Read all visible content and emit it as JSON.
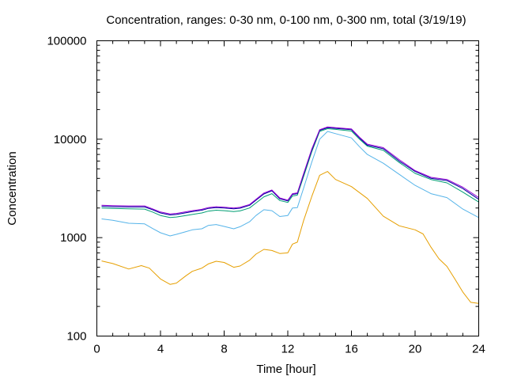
{
  "chart_data": {
    "type": "line",
    "title": "Concentration, ranges: 0-30 nm, 0-100 nm, 0-300 nm, total (3/19/19)",
    "xlabel": "Time [hour]",
    "ylabel": "Concentration",
    "xlim": [
      0,
      24
    ],
    "ylim": [
      100,
      100000
    ],
    "yscale": "log",
    "x_ticks": [
      0,
      4,
      8,
      12,
      16,
      20,
      24
    ],
    "x_tick_labels": [
      "0",
      "4",
      "8",
      "12",
      "16",
      "20",
      "24"
    ],
    "y_ticks": [
      100,
      1000,
      10000,
      100000
    ],
    "y_tick_labels": [
      "100",
      "1000",
      "10000",
      "100000"
    ],
    "grid": false,
    "legend": "none",
    "series": [
      {
        "color": "#e69f00",
        "x": [
          0.3,
          1,
          2,
          2.8,
          3.3,
          4,
          4.6,
          5,
          5.6,
          6,
          6.6,
          7,
          7.5,
          8,
          8.6,
          9,
          9.6,
          10,
          10.5,
          11,
          11.5,
          12,
          12.3,
          12.6,
          13,
          13.5,
          14,
          14.5,
          15,
          16,
          17,
          18,
          19,
          20,
          20.5,
          21,
          21.5,
          22,
          22.5,
          23,
          23.5,
          24
        ],
        "y": [
          580,
          545,
          480,
          520,
          490,
          380,
          335,
          345,
          410,
          455,
          490,
          540,
          575,
          560,
          500,
          515,
          590,
          680,
          760,
          740,
          690,
          700,
          860,
          900,
          1500,
          2600,
          4300,
          4700,
          3900,
          3300,
          2500,
          1650,
          1320,
          1200,
          1090,
          800,
          610,
          510,
          380,
          280,
          220,
          215
        ]
      },
      {
        "color": "#56b4e9",
        "x": [
          0.3,
          1,
          2,
          3,
          3.5,
          4,
          4.6,
          5,
          5.6,
          6,
          6.6,
          7,
          7.5,
          8,
          8.6,
          9,
          9.6,
          10,
          10.5,
          11,
          11.5,
          12,
          12.3,
          12.6,
          13,
          13.5,
          14,
          14.5,
          15,
          16,
          16.5,
          17,
          18,
          19,
          20,
          21,
          22,
          23,
          24
        ],
        "y": [
          1550,
          1500,
          1400,
          1380,
          1240,
          1120,
          1040,
          1080,
          1150,
          1200,
          1230,
          1330,
          1360,
          1300,
          1230,
          1290,
          1450,
          1680,
          1920,
          1880,
          1640,
          1680,
          2000,
          2020,
          3200,
          5800,
          10000,
          12000,
          11400,
          10300,
          8400,
          7000,
          5700,
          4400,
          3400,
          2800,
          2550,
          1950,
          1600
        ]
      },
      {
        "color": "#009e73",
        "x": [
          0.3,
          1,
          2,
          3,
          3.5,
          4,
          4.6,
          5,
          5.6,
          6,
          6.6,
          7,
          7.5,
          8,
          8.6,
          9,
          9.6,
          10,
          10.5,
          11,
          11.5,
          12,
          12.3,
          12.6,
          13,
          13.5,
          14,
          14.5,
          15,
          16,
          16.5,
          17,
          18,
          19,
          20,
          21,
          22,
          23,
          24
        ],
        "y": [
          2000,
          1980,
          1960,
          1950,
          1820,
          1680,
          1600,
          1620,
          1680,
          1720,
          1780,
          1860,
          1900,
          1880,
          1840,
          1870,
          2000,
          2250,
          2600,
          2800,
          2380,
          2280,
          2650,
          2700,
          4200,
          7400,
          12000,
          12800,
          12600,
          12100,
          10000,
          8500,
          7700,
          5800,
          4500,
          3900,
          3600,
          2900,
          2300
        ]
      },
      {
        "color": "#0000a0",
        "x": [
          0.3,
          1,
          2,
          3,
          3.5,
          4,
          4.6,
          5,
          5.6,
          6,
          6.6,
          7,
          7.5,
          8,
          8.6,
          9,
          9.6,
          10,
          10.5,
          11,
          11.5,
          12,
          12.3,
          12.6,
          13,
          13.5,
          14,
          14.5,
          15,
          16,
          16.5,
          17,
          18,
          19,
          20,
          21,
          22,
          23,
          24
        ],
        "y": [
          2080,
          2060,
          2050,
          2050,
          1920,
          1780,
          1700,
          1720,
          1790,
          1840,
          1900,
          1980,
          2020,
          2000,
          1960,
          1990,
          2130,
          2400,
          2780,
          2990,
          2480,
          2360,
          2750,
          2800,
          4400,
          7700,
          12300,
          13100,
          12900,
          12500,
          10300,
          8700,
          8000,
          6000,
          4700,
          4000,
          3800,
          3150,
          2450
        ]
      },
      {
        "color": "#9400d3",
        "x": [
          0.3,
          1,
          2,
          3,
          3.5,
          4,
          4.6,
          5,
          5.6,
          6,
          6.6,
          7,
          7.5,
          8,
          8.6,
          9,
          9.6,
          10,
          10.5,
          11,
          11.5,
          12,
          12.3,
          12.6,
          13,
          13.5,
          14,
          14.5,
          15,
          16,
          16.5,
          17,
          18,
          19,
          20,
          21,
          22,
          23,
          24
        ],
        "y": [
          2130,
          2110,
          2100,
          2100,
          1960,
          1820,
          1740,
          1760,
          1830,
          1880,
          1940,
          2020,
          2060,
          2040,
          2000,
          2030,
          2170,
          2450,
          2840,
          3050,
          2530,
          2400,
          2800,
          2850,
          4500,
          7900,
          12500,
          13300,
          13100,
          12700,
          10500,
          8900,
          8200,
          6200,
          4800,
          4100,
          3900,
          3250,
          2550
        ]
      }
    ]
  }
}
